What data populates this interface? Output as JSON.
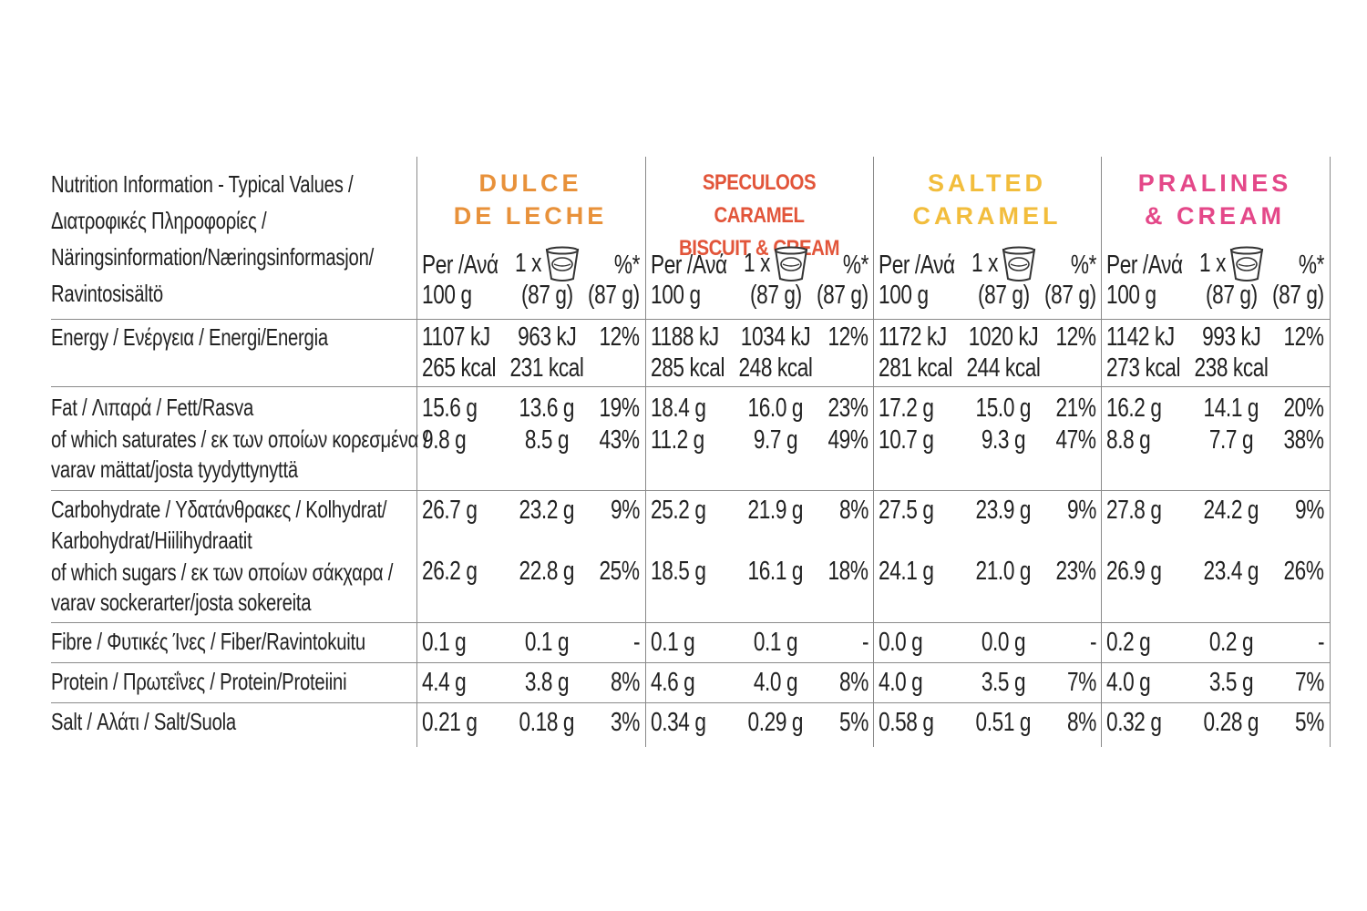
{
  "header_label": [
    "Nutrition Information - Typical Values /",
    "Διατροφικές Πληροφορίες /",
    "Näringsinformation/Næringsinformasjon/",
    "Ravintosisältö"
  ],
  "products": [
    {
      "name_lines": [
        "DULCE",
        "DE LECHE"
      ],
      "color": "#e8913a",
      "style": "spaced"
    },
    {
      "name_lines": [
        "SPECULOOS CARAMEL",
        "BISCUIT & CREAM"
      ],
      "color": "#e2553a",
      "style": "narrow"
    },
    {
      "name_lines": [
        "SALTED",
        "CARAMEL"
      ],
      "color": "#f2bd3c",
      "style": "spaced"
    },
    {
      "name_lines": [
        "PRALINES",
        "& CREAM"
      ],
      "color": "#e44889",
      "style": "spaced"
    }
  ],
  "subheader": {
    "per_line1": "Per /Ανά",
    "per_line2": "100 g",
    "portion_prefix": "1 x",
    "portion_line2": "(87 g)",
    "pct_line1": "%*",
    "pct_line2": "(87 g)",
    "portion_icon": "yogurt-cup-icon"
  },
  "rows": [
    {
      "label": [
        "Energy / Ενέργεια / Energi/Energia"
      ]
    },
    {
      "label": [
        "Fat / Λιπαρά / Fett/Rasva",
        "of which saturates / εκ των οποίων κορεσμένα /",
        "varav mättat/josta tyydyttynyttä"
      ]
    },
    {
      "label": [
        "Carbohydrate / Υδατάνθρακες / Kolhydrat/",
        "Karbohydrat/Hiilihydraatit",
        "of which sugars / εκ των οποίων σάκχαρα /",
        "varav sockerarter/josta sokereita"
      ]
    },
    {
      "label": [
        "Fibre / Φυτικές Ίνες / Fiber/Ravintokuitu"
      ]
    },
    {
      "label": [
        "Protein / Πρωτεΐνες / Protein/Proteiini"
      ]
    },
    {
      "label": [
        "Salt / Αλάτι / Salt/Suola"
      ]
    }
  ],
  "values": [
    {
      "energy": [
        [
          "1107 kJ",
          "963 kJ",
          "12%"
        ],
        [
          "265 kcal",
          "231 kcal",
          ""
        ]
      ],
      "fat": [
        [
          "15.6 g",
          "13.6 g",
          "19%"
        ],
        [
          "9.8 g",
          "8.5 g",
          "43%"
        ]
      ],
      "carb": [
        "26.7 g",
        "23.2 g",
        "9%"
      ],
      "sugars": [
        "26.2 g",
        "22.8 g",
        "25%"
      ],
      "fibre": [
        "0.1 g",
        "0.1 g",
        "-"
      ],
      "protein": [
        "4.4 g",
        "3.8 g",
        "8%"
      ],
      "salt": [
        "0.21 g",
        "0.18 g",
        "3%"
      ]
    },
    {
      "energy": [
        [
          "1188 kJ",
          "1034 kJ",
          "12%"
        ],
        [
          "285 kcal",
          "248 kcal",
          ""
        ]
      ],
      "fat": [
        [
          "18.4 g",
          "16.0 g",
          "23%"
        ],
        [
          "11.2 g",
          "9.7 g",
          "49%"
        ]
      ],
      "carb": [
        "25.2 g",
        "21.9 g",
        "8%"
      ],
      "sugars": [
        "18.5 g",
        "16.1 g",
        "18%"
      ],
      "fibre": [
        "0.1 g",
        "0.1 g",
        "-"
      ],
      "protein": [
        "4.6 g",
        "4.0 g",
        "8%"
      ],
      "salt": [
        "0.34 g",
        "0.29 g",
        "5%"
      ]
    },
    {
      "energy": [
        [
          "1172 kJ",
          "1020 kJ",
          "12%"
        ],
        [
          "281 kcal",
          "244 kcal",
          ""
        ]
      ],
      "fat": [
        [
          "17.2 g",
          "15.0 g",
          "21%"
        ],
        [
          "10.7 g",
          "9.3 g",
          "47%"
        ]
      ],
      "carb": [
        "27.5 g",
        "23.9 g",
        "9%"
      ],
      "sugars": [
        "24.1 g",
        "21.0 g",
        "23%"
      ],
      "fibre": [
        "0.0 g",
        "0.0 g",
        "-"
      ],
      "protein": [
        "4.0 g",
        "3.5 g",
        "7%"
      ],
      "salt": [
        "0.58 g",
        "0.51 g",
        "8%"
      ]
    },
    {
      "energy": [
        [
          "1142 kJ",
          "993 kJ",
          "12%"
        ],
        [
          "273 kcal",
          "238 kcal",
          ""
        ]
      ],
      "fat": [
        [
          "16.2 g",
          "14.1 g",
          "20%"
        ],
        [
          "8.8 g",
          "7.7 g",
          "38%"
        ]
      ],
      "carb": [
        "27.8 g",
        "24.2 g",
        "9%"
      ],
      "sugars": [
        "26.9 g",
        "23.4 g",
        "26%"
      ],
      "fibre": [
        "0.2 g",
        "0.2 g",
        "-"
      ],
      "protein": [
        "4.0 g",
        "3.5 g",
        "7%"
      ],
      "salt": [
        "0.32 g",
        "0.28 g",
        "5%"
      ]
    }
  ]
}
